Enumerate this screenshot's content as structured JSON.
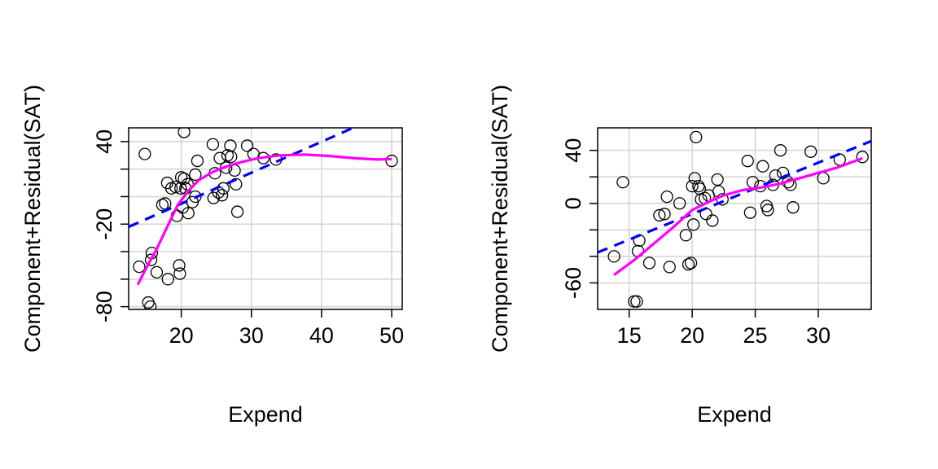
{
  "chart_data": [
    {
      "type": "scatter",
      "title": "",
      "xlabel": "Expend",
      "ylabel": "Component+Residual(SAT)",
      "xlim": [
        12.5,
        51.5
      ],
      "ylim": [
        -82,
        50
      ],
      "xticks": [
        20,
        30,
        40,
        50
      ],
      "yticks": [
        -80,
        -20,
        40
      ],
      "yticks_minor": [
        -60,
        -40,
        0,
        20
      ],
      "grid": true,
      "colors": {
        "linear": "#0000ff",
        "smooth": "#ff00ff",
        "points": "#000000",
        "grid": "#d3d3d3"
      },
      "points": [
        [
          14.0,
          -51
        ],
        [
          14.8,
          31
        ],
        [
          15.3,
          -77
        ],
        [
          15.6,
          -80
        ],
        [
          15.7,
          -46
        ],
        [
          15.8,
          -41
        ],
        [
          16.5,
          -55
        ],
        [
          17.3,
          -6
        ],
        [
          17.7,
          -5
        ],
        [
          18.0,
          10
        ],
        [
          18.1,
          -60
        ],
        [
          18.6,
          6
        ],
        [
          19.2,
          7
        ],
        [
          19.4,
          -14
        ],
        [
          19.7,
          -50
        ],
        [
          19.8,
          -56
        ],
        [
          19.9,
          6
        ],
        [
          20.0,
          14
        ],
        [
          20.2,
          -8
        ],
        [
          20.4,
          13
        ],
        [
          20.4,
          47
        ],
        [
          20.6,
          6
        ],
        [
          20.9,
          9
        ],
        [
          21.0,
          -12
        ],
        [
          21.6,
          -4
        ],
        [
          22.0,
          16
        ],
        [
          22.3,
          26
        ],
        [
          22.0,
          0
        ],
        [
          24.5,
          38
        ],
        [
          24.6,
          -1
        ],
        [
          24.8,
          17
        ],
        [
          25.3,
          3
        ],
        [
          25.5,
          28
        ],
        [
          25.8,
          1
        ],
        [
          26.0,
          6
        ],
        [
          26.4,
          21
        ],
        [
          26.6,
          30
        ],
        [
          27.0,
          37
        ],
        [
          27.1,
          29
        ],
        [
          27.6,
          19
        ],
        [
          27.8,
          9
        ],
        [
          28.0,
          -11
        ],
        [
          29.4,
          37
        ],
        [
          30.3,
          31
        ],
        [
          31.7,
          28
        ],
        [
          33.5,
          27
        ],
        [
          50.0,
          26
        ]
      ],
      "linear_fit": [
        [
          12.5,
          -22
        ],
        [
          44.5,
          50
        ]
      ],
      "smooth_fit": [
        [
          13.8,
          -64
        ],
        [
          15.0,
          -52
        ],
        [
          16.5,
          -38
        ],
        [
          18.0,
          -22
        ],
        [
          19.5,
          -6
        ],
        [
          21.0,
          4
        ],
        [
          22.5,
          12
        ],
        [
          24.5,
          18
        ],
        [
          26.5,
          22
        ],
        [
          28.5,
          25
        ],
        [
          31.0,
          28
        ],
        [
          34.0,
          30
        ],
        [
          37.5,
          30.6
        ],
        [
          41.0,
          29.6
        ],
        [
          45.0,
          27.8
        ],
        [
          48.0,
          27.0
        ],
        [
          50.0,
          27.3
        ]
      ]
    },
    {
      "type": "scatter",
      "title": "",
      "xlabel": "Expend",
      "ylabel": "Component+Residual(SAT)",
      "xlim": [
        12.5,
        34.2
      ],
      "ylim": [
        -80,
        57
      ],
      "xticks": [
        15,
        20,
        25,
        30
      ],
      "yticks": [
        -60,
        0,
        40
      ],
      "yticks_minor": [
        -40,
        -20,
        20
      ],
      "grid": true,
      "colors": {
        "linear": "#0000ff",
        "smooth": "#ff00ff",
        "points": "#000000",
        "grid": "#d3d3d3"
      },
      "points": [
        [
          13.8,
          -40
        ],
        [
          14.5,
          16
        ],
        [
          15.4,
          -74
        ],
        [
          15.6,
          -74
        ],
        [
          15.7,
          -36
        ],
        [
          15.8,
          -28
        ],
        [
          16.6,
          -45
        ],
        [
          17.4,
          -9
        ],
        [
          17.8,
          -8
        ],
        [
          18.0,
          5
        ],
        [
          18.2,
          -48
        ],
        [
          19.0,
          0
        ],
        [
          19.5,
          -24
        ],
        [
          19.7,
          -46
        ],
        [
          19.9,
          -45
        ],
        [
          20.0,
          13
        ],
        [
          20.1,
          -16
        ],
        [
          20.2,
          19
        ],
        [
          20.3,
          50
        ],
        [
          20.5,
          13
        ],
        [
          20.6,
          11
        ],
        [
          20.7,
          3
        ],
        [
          21.0,
          4
        ],
        [
          21.1,
          -8
        ],
        [
          21.3,
          6
        ],
        [
          21.6,
          -13
        ],
        [
          22.0,
          18
        ],
        [
          22.1,
          9
        ],
        [
          22.4,
          3
        ],
        [
          24.4,
          32
        ],
        [
          24.6,
          -7
        ],
        [
          24.8,
          16
        ],
        [
          25.4,
          13
        ],
        [
          25.6,
          28
        ],
        [
          25.9,
          -2
        ],
        [
          26.0,
          -5
        ],
        [
          26.4,
          14
        ],
        [
          26.6,
          21
        ],
        [
          27.0,
          40
        ],
        [
          27.2,
          23
        ],
        [
          27.6,
          16
        ],
        [
          27.8,
          14
        ],
        [
          28.0,
          -3
        ],
        [
          29.4,
          39
        ],
        [
          30.4,
          19
        ],
        [
          31.7,
          33
        ],
        [
          33.5,
          35
        ]
      ],
      "linear_fit": [
        [
          12.5,
          -37
        ],
        [
          34.2,
          47
        ]
      ],
      "smooth_fit": [
        [
          13.8,
          -54
        ],
        [
          15.5,
          -42
        ],
        [
          17.0,
          -30
        ],
        [
          18.5,
          -18
        ],
        [
          20.0,
          -5
        ],
        [
          21.5,
          2
        ],
        [
          22.5,
          6
        ],
        [
          24.0,
          10
        ],
        [
          25.5,
          12
        ],
        [
          27.0,
          15
        ],
        [
          28.5,
          19
        ],
        [
          30.0,
          23
        ],
        [
          31.5,
          27
        ],
        [
          33.5,
          34
        ]
      ]
    }
  ]
}
